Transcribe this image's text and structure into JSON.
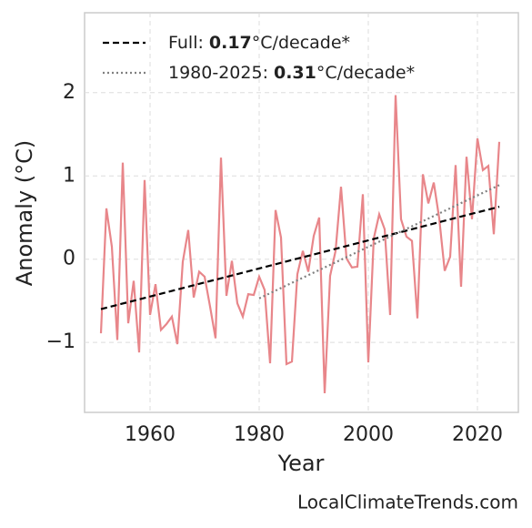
{
  "chart_data": {
    "type": "line",
    "xlabel": "Year",
    "ylabel": "Anomaly (°C)",
    "x": [
      1951,
      1952,
      1953,
      1954,
      1955,
      1956,
      1957,
      1958,
      1959,
      1960,
      1961,
      1962,
      1963,
      1964,
      1965,
      1966,
      1967,
      1968,
      1969,
      1970,
      1971,
      1972,
      1973,
      1974,
      1975,
      1976,
      1977,
      1978,
      1979,
      1980,
      1981,
      1982,
      1983,
      1984,
      1985,
      1986,
      1987,
      1988,
      1989,
      1990,
      1991,
      1992,
      1993,
      1994,
      1995,
      1996,
      1997,
      1998,
      1999,
      2000,
      2001,
      2002,
      2003,
      2004,
      2005,
      2006,
      2007,
      2008,
      2009,
      2010,
      2011,
      2012,
      2013,
      2014,
      2015,
      2016,
      2017,
      2018,
      2019,
      2020,
      2021,
      2022,
      2023,
      2024
    ],
    "series": [
      {
        "color": "#e8868a",
        "values": [
          -0.89,
          0.61,
          0.15,
          -0.97,
          1.16,
          -0.77,
          -0.26,
          -1.12,
          0.95,
          -0.67,
          -0.3,
          -0.85,
          -0.78,
          -0.69,
          -1.02,
          -0.03,
          0.35,
          -0.46,
          -0.15,
          -0.21,
          -0.57,
          -0.95,
          1.22,
          -0.44,
          -0.02,
          -0.53,
          -0.69,
          -0.42,
          -0.43,
          -0.21,
          -0.37,
          -1.25,
          0.59,
          0.26,
          -1.26,
          -1.23,
          -0.18,
          0.1,
          -0.15,
          0.28,
          0.5,
          -1.61,
          -0.2,
          0.1,
          0.87,
          0.01,
          -0.1,
          -0.09,
          0.78,
          -1.24,
          0.25,
          0.54,
          0.36,
          -0.67,
          1.97,
          0.48,
          0.27,
          0.22,
          -0.71,
          1.02,
          0.67,
          0.92,
          0.49,
          -0.14,
          0.03,
          1.13,
          -0.33,
          1.23,
          0.48,
          1.45,
          1.07,
          1.12,
          0.3,
          1.41
        ]
      }
    ],
    "trends": [
      {
        "name": "Full:",
        "slope": 0.17,
        "unit": "°C/decade*",
        "color": "#000000",
        "dash": "7,4",
        "x": [
          1951,
          2024
        ],
        "values": [
          -0.6,
          0.63
        ]
      },
      {
        "name": "1980-2025:",
        "slope": 0.31,
        "unit": "°C/decade*",
        "color": "#808080",
        "dash": "2,3",
        "x": [
          1980,
          2024
        ],
        "values": [
          -0.47,
          0.89
        ]
      }
    ],
    "xlim": [
      1948,
      2027.5
    ],
    "ylim": [
      -1.84,
      2.96
    ],
    "xticks": [
      1960,
      1980,
      2000,
      2020
    ],
    "yticks": [
      {
        "value": -1,
        "label": "−1"
      },
      0,
      1,
      2
    ],
    "grid": true,
    "source": "LocalClimateTrends.com"
  }
}
